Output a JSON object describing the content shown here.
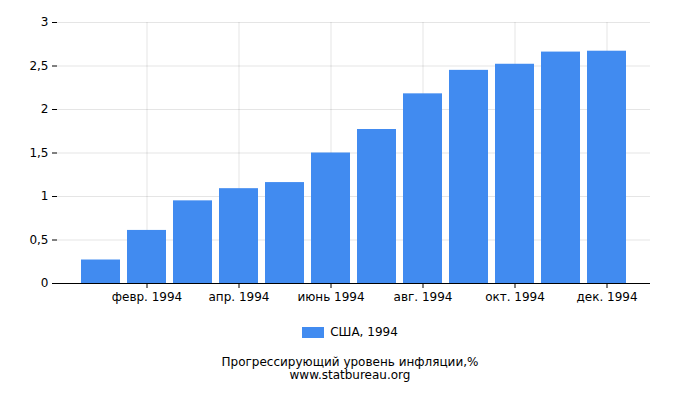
{
  "chart_data": {
    "type": "bar",
    "title": "Прогрессирующий уровень инфляции,%",
    "subtitle": "www.statbureau.org",
    "categories": [
      null,
      "февр. 1994",
      null,
      "апр. 1994",
      null,
      "июнь 1994",
      null,
      "авг. 1994",
      null,
      "окт. 1994",
      null,
      "дек. 1994"
    ],
    "series": [
      {
        "name": "США, 1994",
        "color": "#418bf0",
        "values": [
          0.27,
          0.61,
          0.95,
          1.09,
          1.16,
          1.5,
          1.77,
          2.18,
          2.45,
          2.52,
          2.66,
          2.67
        ]
      }
    ],
    "ylim": [
      0,
      3
    ],
    "yticks": [
      0,
      {
        "value": 0.5,
        "label": "0,5"
      },
      1,
      {
        "value": 1.5,
        "label": "1,5"
      },
      2,
      {
        "value": 2.5,
        "label": "2,5"
      },
      3
    ],
    "grid": true,
    "legend": "bottom"
  }
}
